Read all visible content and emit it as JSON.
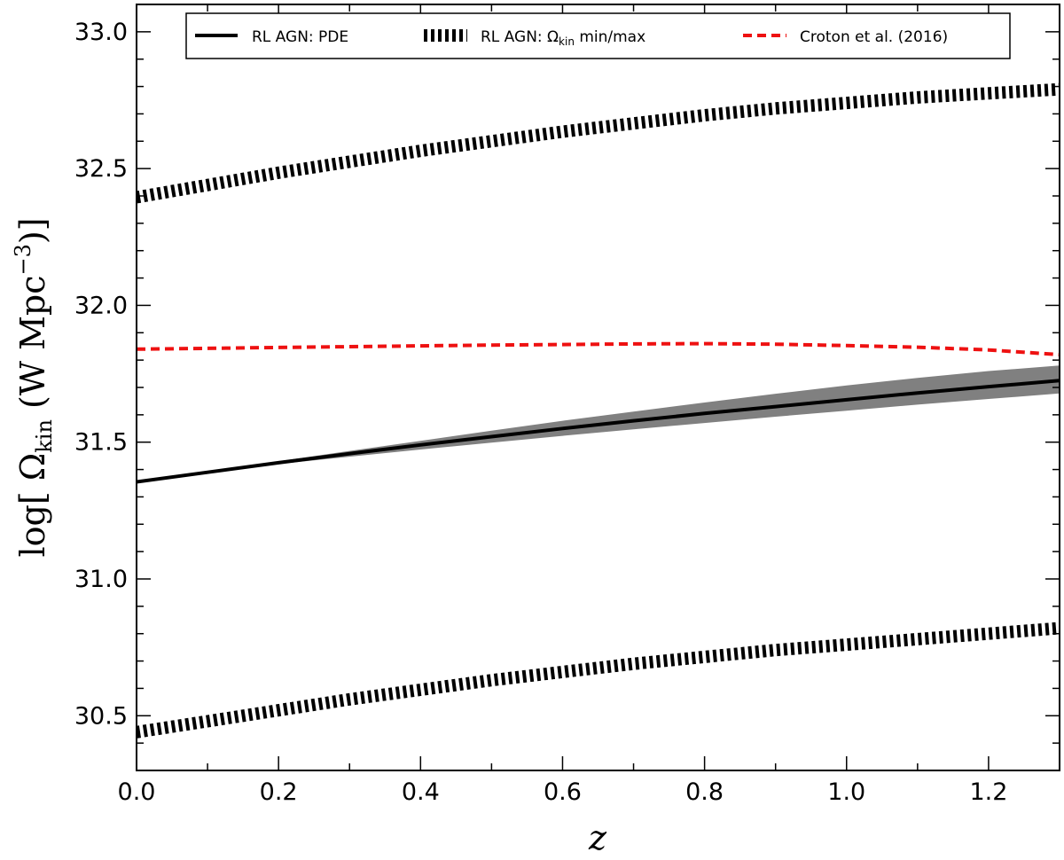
{
  "chart_data": {
    "type": "line",
    "xlabel": "z",
    "ylabel_prefix": "log[ Ω",
    "ylabel_sub": "kin",
    "ylabel_unit": " (W Mpc",
    "ylabel_sup": "−3",
    "ylabel_suffix": ")]",
    "xlim": [
      0.0,
      1.3
    ],
    "ylim": [
      30.3,
      33.1
    ],
    "x_ticks": [
      0.0,
      0.2,
      0.4,
      0.6,
      0.8,
      1.0,
      1.2
    ],
    "x_tick_labels": [
      "0.0",
      "0.2",
      "0.4",
      "0.6",
      "0.8",
      "1.0",
      "1.2"
    ],
    "y_ticks": [
      30.5,
      31.0,
      31.5,
      32.0,
      32.5,
      33.0
    ],
    "y_tick_labels": [
      "30.5",
      "31.0",
      "31.5",
      "32.0",
      "32.5",
      "33.0"
    ],
    "x_minor_step": 0.1,
    "y_minor_step": 0.1,
    "grid": false,
    "legend_position": "top",
    "legend": [
      {
        "label": "RL AGN: PDE",
        "style": "solid"
      },
      {
        "label_prefix": "RL AGN: Ω",
        "label_sub": "kin",
        "label_suffix": " min/max",
        "style": "thick-dashed"
      },
      {
        "label": "Croton et al. (2016)",
        "style": "red-dashed"
      }
    ],
    "series": [
      {
        "style": "solid",
        "color": "#000000",
        "x": [
          0.0,
          0.1,
          0.2,
          0.3,
          0.4,
          0.5,
          0.6,
          0.7,
          0.8,
          0.9,
          1.0,
          1.1,
          1.2,
          1.3
        ],
        "y": [
          31.355,
          31.39,
          31.425,
          31.458,
          31.49,
          31.52,
          31.55,
          31.578,
          31.605,
          31.63,
          31.655,
          31.68,
          31.703,
          31.725
        ],
        "band_lower": [
          31.355,
          31.388,
          31.42,
          31.447,
          31.473,
          31.498,
          31.523,
          31.547,
          31.57,
          31.593,
          31.615,
          31.637,
          31.658,
          31.678
        ],
        "band_upper": [
          31.355,
          31.392,
          31.43,
          31.468,
          31.505,
          31.542,
          31.578,
          31.612,
          31.645,
          31.677,
          31.707,
          31.735,
          31.76,
          31.78
        ]
      },
      {
        "style": "thick-dashed",
        "color": "#000000",
        "x": [
          0.0,
          0.1,
          0.2,
          0.3,
          0.4,
          0.5,
          0.6,
          0.7,
          0.8,
          0.9,
          1.0,
          1.1,
          1.2,
          1.3
        ],
        "y": [
          32.395,
          32.44,
          32.485,
          32.525,
          32.565,
          32.6,
          32.635,
          32.665,
          32.695,
          32.72,
          32.74,
          32.76,
          32.775,
          32.79
        ]
      },
      {
        "style": "thick-dashed",
        "color": "#000000",
        "x": [
          0.0,
          0.1,
          0.2,
          0.3,
          0.4,
          0.5,
          0.6,
          0.7,
          0.8,
          0.9,
          1.0,
          1.1,
          1.2,
          1.3
        ],
        "y": [
          30.44,
          30.48,
          30.52,
          30.56,
          30.595,
          30.63,
          30.66,
          30.69,
          30.715,
          30.74,
          30.76,
          30.78,
          30.8,
          30.82
        ]
      },
      {
        "style": "red-dashed",
        "color": "#ee1111",
        "x": [
          0.0,
          0.1,
          0.2,
          0.3,
          0.4,
          0.5,
          0.6,
          0.7,
          0.8,
          0.9,
          1.0,
          1.1,
          1.2,
          1.3
        ],
        "y": [
          31.84,
          31.843,
          31.846,
          31.849,
          31.852,
          31.855,
          31.857,
          31.859,
          31.86,
          31.858,
          31.853,
          31.847,
          31.837,
          31.82
        ]
      }
    ]
  }
}
